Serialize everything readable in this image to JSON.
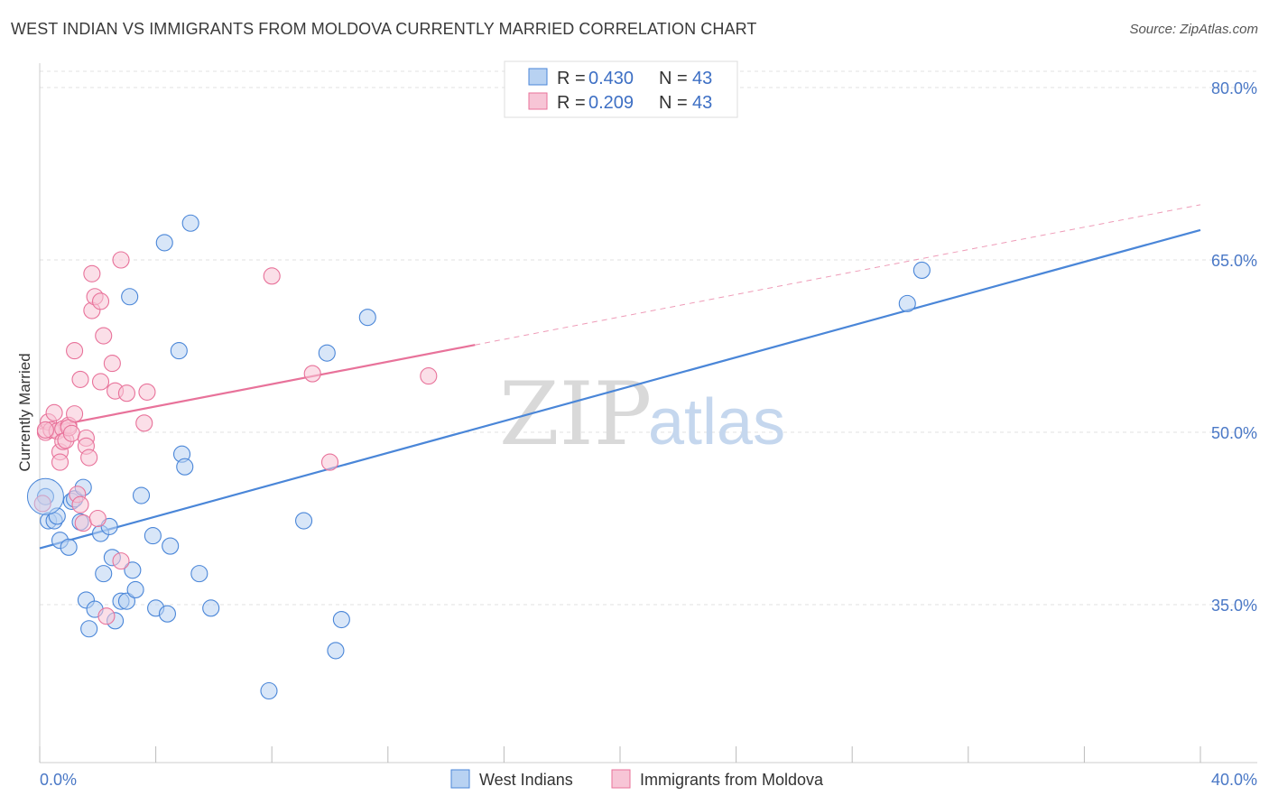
{
  "title": "WEST INDIAN VS IMMIGRANTS FROM MOLDOVA CURRENTLY MARRIED CORRELATION CHART",
  "source": "Source: ZipAtlas.com",
  "watermark": {
    "zip": "ZIP",
    "atlas": "atlas"
  },
  "colors": {
    "blue": "#4a86d8",
    "blue_fill": "#b8d2f2",
    "pink": "#e8729a",
    "pink_fill": "#f7c5d6",
    "grid": "#e0e0e0"
  },
  "legend": {
    "items": [
      {
        "r_label": "R = ",
        "r_value": "0.430",
        "n_label": "N = ",
        "n_value": "43"
      },
      {
        "r_label": "R = ",
        "r_value": "0.209",
        "n_label": "N = ",
        "n_value": "43"
      }
    ]
  },
  "chart_data": {
    "type": "scatter",
    "xlabel": "",
    "ylabel": "Currently Married",
    "xlim": [
      0,
      40
    ],
    "ylim": [
      20,
      83
    ],
    "x_tick_labels": [
      {
        "value": 0,
        "label": "0.0%"
      },
      {
        "value": 40,
        "label": "40.0%"
      }
    ],
    "y_tick_labels": [
      {
        "value": 80,
        "label": "80.0%"
      },
      {
        "value": 65,
        "label": "65.0%"
      },
      {
        "value": 50,
        "label": "50.0%"
      },
      {
        "value": 35,
        "label": "35.0%"
      }
    ],
    "grid": true,
    "legend_position": "top-center",
    "series": [
      {
        "name": "West Indians",
        "color": "#4a86d8",
        "trend": {
          "x0": 0,
          "y0": 39.9,
          "x1": 40,
          "y1": 67.6
        },
        "points": [
          [
            0.2,
            44.4
          ],
          [
            0.3,
            42.3
          ],
          [
            0.5,
            42.3
          ],
          [
            0.6,
            42.7
          ],
          [
            0.7,
            40.6
          ],
          [
            1.0,
            40.0
          ],
          [
            1.1,
            44.0
          ],
          [
            1.2,
            44.2
          ],
          [
            1.4,
            42.2
          ],
          [
            1.5,
            45.2
          ],
          [
            1.6,
            35.4
          ],
          [
            1.7,
            32.9
          ],
          [
            1.9,
            34.6
          ],
          [
            2.1,
            41.2
          ],
          [
            2.2,
            37.7
          ],
          [
            2.4,
            41.8
          ],
          [
            2.5,
            39.1
          ],
          [
            2.6,
            33.6
          ],
          [
            2.8,
            35.3
          ],
          [
            3.0,
            35.3
          ],
          [
            3.1,
            61.8
          ],
          [
            3.2,
            38.0
          ],
          [
            3.3,
            36.3
          ],
          [
            3.5,
            44.5
          ],
          [
            3.9,
            41.0
          ],
          [
            4.0,
            34.7
          ],
          [
            4.4,
            34.2
          ],
          [
            4.5,
            40.1
          ],
          [
            4.3,
            66.5
          ],
          [
            4.8,
            57.1
          ],
          [
            4.9,
            48.1
          ],
          [
            5.0,
            47.0
          ],
          [
            5.2,
            68.2
          ],
          [
            5.5,
            37.7
          ],
          [
            5.9,
            34.7
          ],
          [
            7.9,
            27.5
          ],
          [
            9.1,
            42.3
          ],
          [
            9.9,
            56.9
          ],
          [
            10.2,
            31.0
          ],
          [
            10.4,
            33.7
          ],
          [
            11.3,
            60.0
          ],
          [
            29.9,
            61.2
          ],
          [
            30.4,
            64.1
          ]
        ]
      },
      {
        "name": "Immigrants from Moldova",
        "color": "#e8729a",
        "trend": {
          "x0": 0,
          "y0": 50.3,
          "x1": 15.0,
          "y1": 57.6
        },
        "trend_dashed": {
          "x0": 15.0,
          "y0": 57.6,
          "x1": 40,
          "y1": 69.8
        },
        "points": [
          [
            0.1,
            43.8
          ],
          [
            0.2,
            50.0
          ],
          [
            0.3,
            50.9
          ],
          [
            0.4,
            50.2
          ],
          [
            0.5,
            51.7
          ],
          [
            0.6,
            50.1
          ],
          [
            0.7,
            48.3
          ],
          [
            0.7,
            47.4
          ],
          [
            0.8,
            50.3
          ],
          [
            0.8,
            49.2
          ],
          [
            0.9,
            49.3
          ],
          [
            1.0,
            50.6
          ],
          [
            1.0,
            50.4
          ],
          [
            1.1,
            49.9
          ],
          [
            1.2,
            51.6
          ],
          [
            1.2,
            57.1
          ],
          [
            1.3,
            44.6
          ],
          [
            1.4,
            43.7
          ],
          [
            1.4,
            54.6
          ],
          [
            1.5,
            42.1
          ],
          [
            1.6,
            49.5
          ],
          [
            1.6,
            48.8
          ],
          [
            1.7,
            47.8
          ],
          [
            1.8,
            63.8
          ],
          [
            1.8,
            60.6
          ],
          [
            1.9,
            61.8
          ],
          [
            2.0,
            42.5
          ],
          [
            2.1,
            61.4
          ],
          [
            2.1,
            54.4
          ],
          [
            2.2,
            58.4
          ],
          [
            2.3,
            34.0
          ],
          [
            2.5,
            56.0
          ],
          [
            2.6,
            53.6
          ],
          [
            2.8,
            65.0
          ],
          [
            2.8,
            38.8
          ],
          [
            3.0,
            53.4
          ],
          [
            3.6,
            50.8
          ],
          [
            3.7,
            53.5
          ],
          [
            8.0,
            63.6
          ],
          [
            9.4,
            55.1
          ],
          [
            10.0,
            47.4
          ],
          [
            13.4,
            54.9
          ],
          [
            0.2,
            50.2
          ]
        ]
      }
    ]
  },
  "bottom_legend": [
    {
      "label": "West Indians"
    },
    {
      "label": "Immigrants from Moldova"
    }
  ]
}
